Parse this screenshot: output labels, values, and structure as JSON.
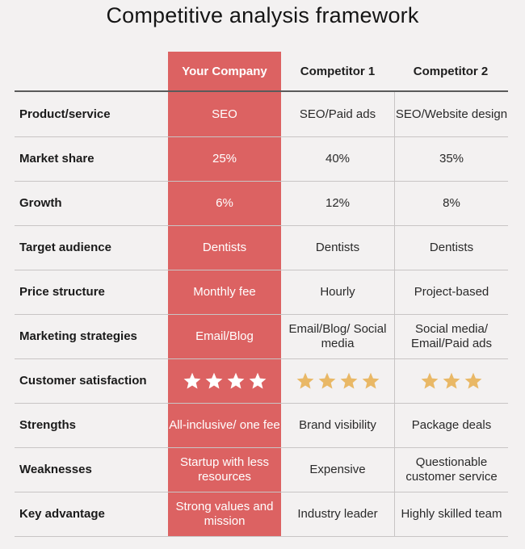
{
  "title": "Competitive analysis framework",
  "columns": {
    "your_company": "Your Company",
    "competitor_1": "Competitor 1",
    "competitor_2": "Competitor 2"
  },
  "colors": {
    "highlight": "#dc6262",
    "star_white": "#ffffff",
    "star_gold": "#e9b866"
  },
  "rows": [
    {
      "label": "Product/service",
      "you": "SEO",
      "c1": "SEO/Paid ads",
      "c2": "SEO/Website design"
    },
    {
      "label": "Market share",
      "you": "25%",
      "c1": "40%",
      "c2": "35%"
    },
    {
      "label": "Growth",
      "you": "6%",
      "c1": "12%",
      "c2": "8%"
    },
    {
      "label": "Target audience",
      "you": "Dentists",
      "c1": "Dentists",
      "c2": "Dentists"
    },
    {
      "label": "Price structure",
      "you": "Monthly fee",
      "c1": "Hourly",
      "c2": "Project-based"
    },
    {
      "label": "Marketing strategies",
      "you": "Email/Blog",
      "c1": "Email/Blog/ Social media",
      "c2": "Social media/ Email/Paid ads"
    },
    {
      "label": "Customer satisfaction",
      "you_stars": 4,
      "c1_stars": 4,
      "c2_stars": 3
    },
    {
      "label": "Strengths",
      "you": "All-inclusive/ one fee",
      "c1": "Brand visibility",
      "c2": "Package deals"
    },
    {
      "label": "Weaknesses",
      "you": "Startup with less resources",
      "c1": "Expensive",
      "c2": "Questionable customer service"
    },
    {
      "label": "Key advantage",
      "you": "Strong values and mission",
      "c1": "Industry leader",
      "c2": "Highly skilled team"
    }
  ]
}
